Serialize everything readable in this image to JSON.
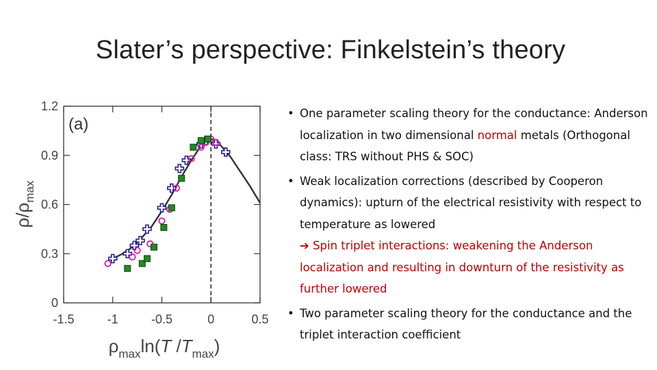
{
  "title": "Slater’s perspective: Finkelstein’s theory",
  "chart_data": {
    "type": "scatter",
    "panel_label": "(a)",
    "xlabel": "ρmaxln(T/Tmax)",
    "ylabel": "ρ/ρmax",
    "xlim": [
      -1.5,
      0.5
    ],
    "ylim": [
      0,
      1.2
    ],
    "xticks": [
      "-1.5",
      "-1",
      "-0.5",
      "0",
      "0.5"
    ],
    "yticks": [
      "0",
      "0.3",
      "0.6",
      "0.9",
      "1.2"
    ],
    "vline_x": 0,
    "curve": {
      "x": [
        -1.0,
        -0.9,
        -0.8,
        -0.7,
        -0.6,
        -0.5,
        -0.4,
        -0.3,
        -0.2,
        -0.1,
        -0.05,
        0.0,
        0.05,
        0.1,
        0.2,
        0.3,
        0.4,
        0.5
      ],
      "y": [
        0.27,
        0.3,
        0.34,
        0.4,
        0.47,
        0.56,
        0.66,
        0.77,
        0.87,
        0.96,
        0.99,
        1.0,
        0.99,
        0.96,
        0.89,
        0.8,
        0.71,
        0.61
      ]
    },
    "series": [
      {
        "marker": "plus",
        "color": "#1f1f8f",
        "x": [
          -1.0,
          -0.85,
          -0.78,
          -0.72,
          -0.65,
          -0.5,
          -0.4,
          -0.32,
          -0.25,
          -0.1,
          -0.05,
          0.05,
          0.15
        ],
        "y": [
          0.27,
          0.3,
          0.35,
          0.38,
          0.45,
          0.58,
          0.7,
          0.82,
          0.87,
          0.97,
          0.99,
          0.97,
          0.92
        ]
      },
      {
        "marker": "circle",
        "color": "#d020a0",
        "x": [
          -1.05,
          -0.8,
          -0.75,
          -0.62,
          -0.5,
          -0.42,
          -0.35,
          -0.3,
          -0.2,
          -0.1,
          -0.05,
          0.0,
          0.05
        ],
        "y": [
          0.24,
          0.28,
          0.32,
          0.36,
          0.5,
          0.57,
          0.7,
          0.76,
          0.88,
          0.95,
          0.98,
          1.0,
          0.98
        ]
      },
      {
        "marker": "square",
        "color": "#228822",
        "x": [
          -0.85,
          -0.7,
          -0.65,
          -0.58,
          -0.48,
          -0.4,
          -0.3,
          -0.18,
          -0.1,
          -0.03
        ],
        "y": [
          0.21,
          0.24,
          0.27,
          0.34,
          0.46,
          0.58,
          0.76,
          0.95,
          0.99,
          1.0
        ]
      }
    ]
  },
  "bullets": [
    {
      "dot": "•",
      "text_pre": "One parameter scaling theory for the conductance: Anderson localization in two dimensional ",
      "text_red": "normal",
      "text_post": " metals (Orthogonal class: TRS without PHS & SOC)"
    },
    {
      "dot": "•",
      "text": "Weak localization corrections (described by Cooperon dynamics): upturn of the electrical resistivity with respect to temperature as lowered",
      "arrow": "➔",
      "arrow_text": "Spin triplet interactions: weakening the Anderson localization and resulting in downturn of the resistivity as further lowered"
    },
    {
      "dot": "•",
      "text": "Two parameter scaling theory for the conductance and the triplet interaction coefficient"
    }
  ]
}
